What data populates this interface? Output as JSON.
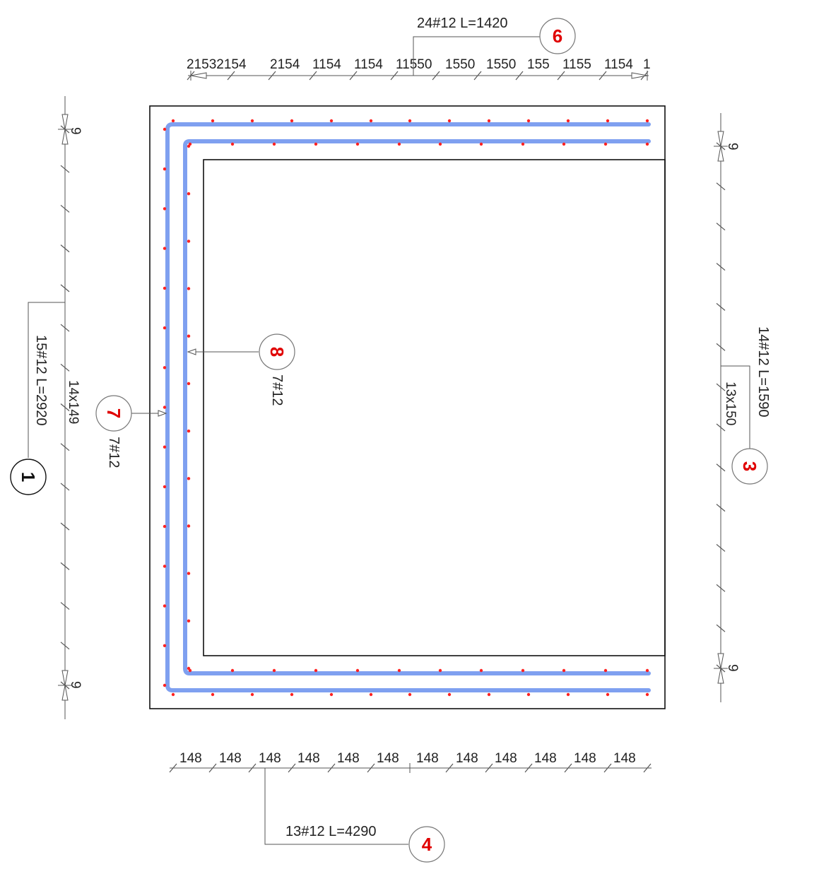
{
  "colors": {
    "outline": "#111111",
    "dimension": "#555555",
    "bar": "#7fa0f0",
    "bar_stroke": "#5a7fe0",
    "dot": "#ff2222",
    "bubble_red": "#e00000",
    "bubble_black": "#111111"
  },
  "top_dimension": {
    "labels": [
      "21532154",
      "2154",
      "1154",
      "1154",
      "11550",
      "1550",
      "1550",
      "155",
      "1155",
      "1154",
      "1"
    ]
  },
  "bottom_dimension": {
    "labels": [
      "148",
      "148",
      "148",
      "148",
      "148",
      "148",
      "148",
      "148",
      "148",
      "148",
      "148",
      "148"
    ]
  },
  "left_dimension": {
    "end_label_top": "9",
    "end_label_bottom": "9",
    "span_label": "14x149"
  },
  "right_dimension": {
    "end_label_top": "9",
    "end_label_bottom": "9",
    "span_label": "13x150"
  },
  "tags": [
    {
      "id": "1",
      "text": "15#12  L=2920",
      "color": "black"
    },
    {
      "id": "3",
      "text": "14#12  L=1590",
      "color": "red"
    },
    {
      "id": "4",
      "text": "13#12  L=4290",
      "color": "red"
    },
    {
      "id": "6",
      "text": "24#12  L=1420",
      "color": "red"
    },
    {
      "id": "7",
      "text": "7#12",
      "color": "red"
    },
    {
      "id": "8",
      "text": "7#12",
      "color": "red"
    }
  ]
}
